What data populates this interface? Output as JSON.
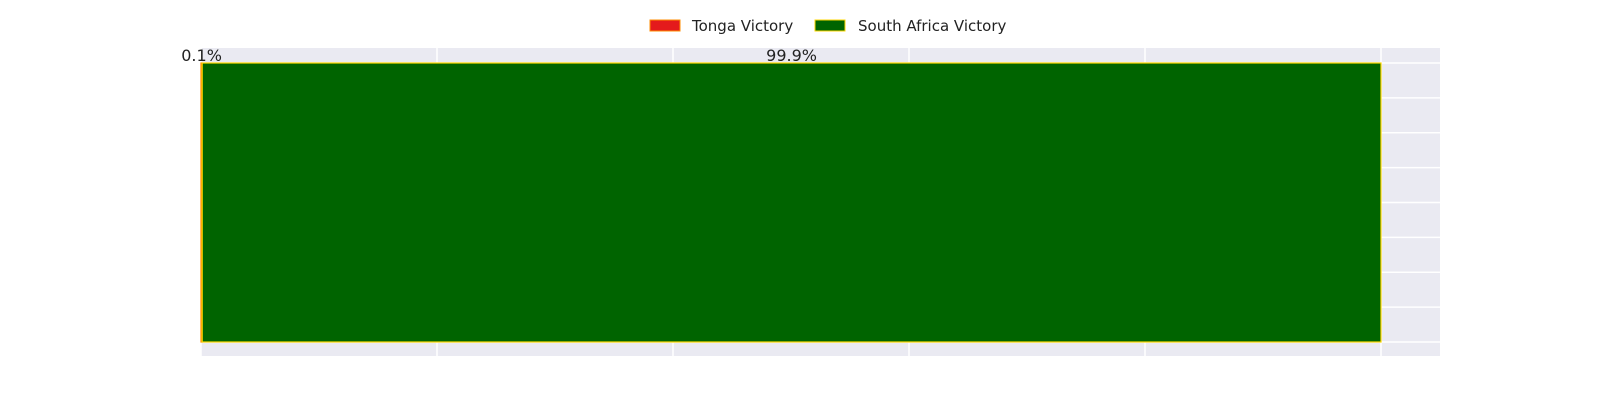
{
  "chart_data": {
    "type": "bar",
    "orientation": "horizontal",
    "stacked": true,
    "categories": [
      ""
    ],
    "series": [
      {
        "name": "Tonga Victory",
        "values": [
          0.1
        ],
        "label": "0.1%",
        "color": "#e41a1c",
        "edge_color": "#ff8c00"
      },
      {
        "name": "South Africa Victory",
        "values": [
          99.9
        ],
        "label": "99.9%",
        "color": "#006400",
        "edge_color": "#ffd700"
      }
    ],
    "xlim": [
      0,
      105
    ],
    "x_unit": "%",
    "grid": true,
    "legend_position": "top-center",
    "background_color": "#eaeaf2",
    "grid_color": "#ffffff"
  }
}
